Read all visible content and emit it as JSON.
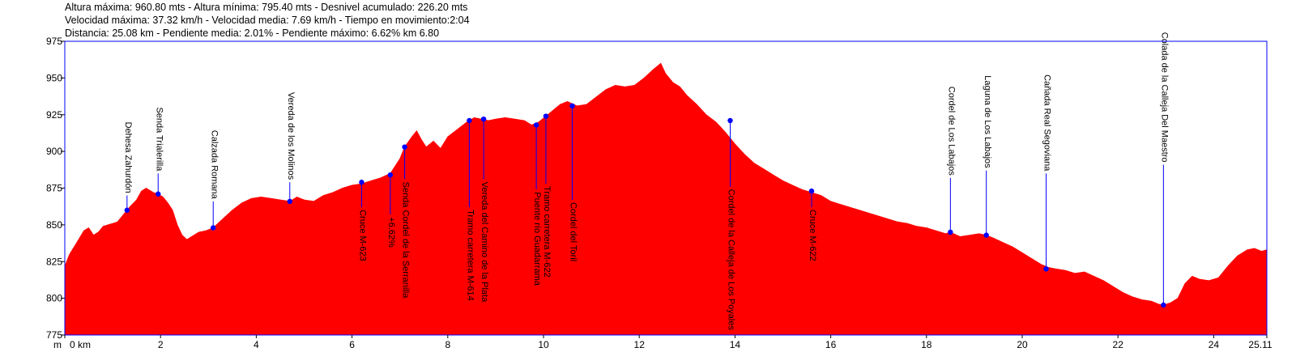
{
  "stats": {
    "line1": "Altura máxima: 960.80 mts - Altura mínima: 795.40 mts - Desnivel acumulado: 226.20 mts",
    "line2": "Velocidad máxima: 37.32 km/h - Velocidad media: 7.69 km/h - Tiempo en movimiento:2:04",
    "line3": "Distancia: 25.08 km - Pendiente media: 2.01% - Pendiente máximo: 6.62% km 6.80"
  },
  "colors": {
    "fill": "#ff0000",
    "marker": "#0000ff",
    "frame": "#0000ff",
    "axis": "#000000"
  },
  "chart_data": {
    "type": "area",
    "xlabel": "m",
    "xlim": [
      0,
      25.11
    ],
    "ylim": [
      775,
      975
    ],
    "x_ticks": [
      {
        "value": 0,
        "label": "0 km"
      },
      {
        "value": 2,
        "label": "2"
      },
      {
        "value": 4,
        "label": "4"
      },
      {
        "value": 6,
        "label": "6"
      },
      {
        "value": 8,
        "label": "8"
      },
      {
        "value": 10,
        "label": "10"
      },
      {
        "value": 12,
        "label": "12"
      },
      {
        "value": 14,
        "label": "14"
      },
      {
        "value": 16,
        "label": "16"
      },
      {
        "value": 18,
        "label": "18"
      },
      {
        "value": 20,
        "label": "20"
      },
      {
        "value": 22,
        "label": "22"
      },
      {
        "value": 24,
        "label": "24"
      },
      {
        "value": 25.11,
        "label": "25.11"
      }
    ],
    "y_ticks": [
      {
        "value": 775,
        "label": "775"
      },
      {
        "value": 800,
        "label": "800"
      },
      {
        "value": 825,
        "label": "825"
      },
      {
        "value": 850,
        "label": "850"
      },
      {
        "value": 875,
        "label": "875"
      },
      {
        "value": 900,
        "label": "900"
      },
      {
        "value": 925,
        "label": "925"
      },
      {
        "value": 950,
        "label": "950"
      },
      {
        "value": 975,
        "label": "975"
      }
    ],
    "x": [
      0,
      0.1,
      0.25,
      0.4,
      0.5,
      0.6,
      0.7,
      0.8,
      0.9,
      1.0,
      1.1,
      1.2,
      1.35,
      1.5,
      1.6,
      1.7,
      1.75,
      1.85,
      1.95,
      2.05,
      2.15,
      2.25,
      2.35,
      2.45,
      2.55,
      2.65,
      2.8,
      2.95,
      3.1,
      3.3,
      3.5,
      3.7,
      3.9,
      4.1,
      4.3,
      4.5,
      4.7,
      4.85,
      5.0,
      5.2,
      5.4,
      5.6,
      5.8,
      6.0,
      6.2,
      6.4,
      6.6,
      6.8,
      7.0,
      7.1,
      7.25,
      7.35,
      7.45,
      7.55,
      7.7,
      7.85,
      8.0,
      8.2,
      8.4,
      8.55,
      8.7,
      8.85,
      9.0,
      9.2,
      9.4,
      9.6,
      9.75,
      9.9,
      10.05,
      10.2,
      10.35,
      10.5,
      10.7,
      10.9,
      11.1,
      11.3,
      11.5,
      11.7,
      11.9,
      12.1,
      12.3,
      12.45,
      12.55,
      12.7,
      12.85,
      13.0,
      13.2,
      13.4,
      13.6,
      13.8,
      14.0,
      14.2,
      14.4,
      14.6,
      14.8,
      15.0,
      15.2,
      15.4,
      15.6,
      15.8,
      16.0,
      16.2,
      16.4,
      16.6,
      16.8,
      17.0,
      17.2,
      17.4,
      17.6,
      17.8,
      18.0,
      18.2,
      18.4,
      18.5,
      18.7,
      18.9,
      19.1,
      19.25,
      19.4,
      19.6,
      19.8,
      20.0,
      20.2,
      20.4,
      20.55,
      20.7,
      20.9,
      21.1,
      21.3,
      21.5,
      21.7,
      21.9,
      22.1,
      22.3,
      22.5,
      22.7,
      22.85,
      22.95,
      23.1,
      23.25,
      23.4,
      23.55,
      23.7,
      23.9,
      24.1,
      24.3,
      24.5,
      24.7,
      24.85,
      25.0,
      25.11
    ],
    "y": [
      822,
      830,
      838,
      846,
      848,
      843,
      845,
      849,
      850,
      851,
      852,
      856,
      862,
      867,
      873,
      875,
      874,
      872,
      871,
      869,
      865,
      860,
      850,
      843,
      840,
      842,
      845,
      846,
      848,
      854,
      860,
      865,
      868,
      869,
      868,
      867,
      866,
      869,
      867,
      866,
      870,
      872,
      875,
      877,
      878,
      880,
      882,
      885,
      895,
      903,
      910,
      914,
      908,
      903,
      907,
      902,
      910,
      915,
      920,
      923,
      922,
      921,
      922,
      923,
      922,
      921,
      918,
      920,
      924,
      928,
      932,
      934,
      931,
      932,
      937,
      942,
      945,
      944,
      945,
      950,
      956,
      960,
      953,
      947,
      944,
      938,
      932,
      925,
      920,
      913,
      905,
      898,
      892,
      888,
      884,
      880,
      877,
      874,
      872,
      870,
      866,
      864,
      862,
      860,
      858,
      856,
      854,
      852,
      851,
      849,
      848,
      846,
      844,
      845,
      842,
      843,
      844,
      843,
      841,
      838,
      835,
      831,
      827,
      823,
      821,
      820,
      819,
      817,
      818,
      815,
      812,
      808,
      804,
      801,
      799,
      798,
      796,
      795.4,
      797,
      800,
      810,
      815,
      813,
      812,
      814,
      822,
      829,
      833,
      834,
      832,
      833
    ]
  },
  "waypoints": [
    {
      "km": 1.3,
      "elev": 860,
      "label": "Dehesa Zahurdón",
      "side": "up",
      "edge": 870
    },
    {
      "km": 1.95,
      "elev": 871,
      "label": "Senda Trialerilla",
      "side": "up",
      "edge": 885
    },
    {
      "km": 3.1,
      "elev": 848,
      "label": "Calzada Romana",
      "side": "up",
      "edge": 866
    },
    {
      "km": 4.7,
      "elev": 866,
      "label": "Vereda de los Molinos",
      "side": "up",
      "edge": 879
    },
    {
      "km": 6.2,
      "elev": 879,
      "label": "Cruce M-623",
      "side": "down",
      "edge": 862
    },
    {
      "km": 6.8,
      "elev": 884,
      "label": "+6.62%",
      "side": "down",
      "edge": 857
    },
    {
      "km": 7.1,
      "elev": 903,
      "label": "Senda Cordel de la Serranilla",
      "side": "down",
      "edge": 881
    },
    {
      "km": 8.45,
      "elev": 921,
      "label": "Tramo carretera M-614",
      "side": "down",
      "edge": 862
    },
    {
      "km": 8.75,
      "elev": 922,
      "label": "Vereda del Camino de la Plata",
      "side": "down",
      "edge": 881
    },
    {
      "km": 9.85,
      "elev": 918,
      "label": "Puente río Guadarrama",
      "side": "down",
      "edge": 874
    },
    {
      "km": 10.05,
      "elev": 924,
      "label": "Tramo carretera M-622",
      "side": "down",
      "edge": 878
    },
    {
      "km": 10.6,
      "elev": 931,
      "label": "Cordel del Toril",
      "side": "down",
      "edge": 867
    },
    {
      "km": 13.9,
      "elev": 921,
      "label": "Cordel de la Calleja de Los Poyales",
      "side": "down",
      "edge": 876
    },
    {
      "km": 15.6,
      "elev": 873,
      "label": "Cruce M-622",
      "side": "down",
      "edge": 862
    },
    {
      "km": 18.5,
      "elev": 845,
      "label": "Cordel de Los Labajos",
      "side": "up",
      "edge": 882
    },
    {
      "km": 19.25,
      "elev": 843,
      "label": "Laguna de Los Labajos",
      "side": "up",
      "edge": 887
    },
    {
      "km": 20.5,
      "elev": 820,
      "label": "Cañada Real Segoviana",
      "side": "up",
      "edge": 885
    },
    {
      "km": 22.95,
      "elev": 795.4,
      "label": "Colada de la Calleja Del Maestro",
      "side": "up",
      "edge": 891
    }
  ]
}
